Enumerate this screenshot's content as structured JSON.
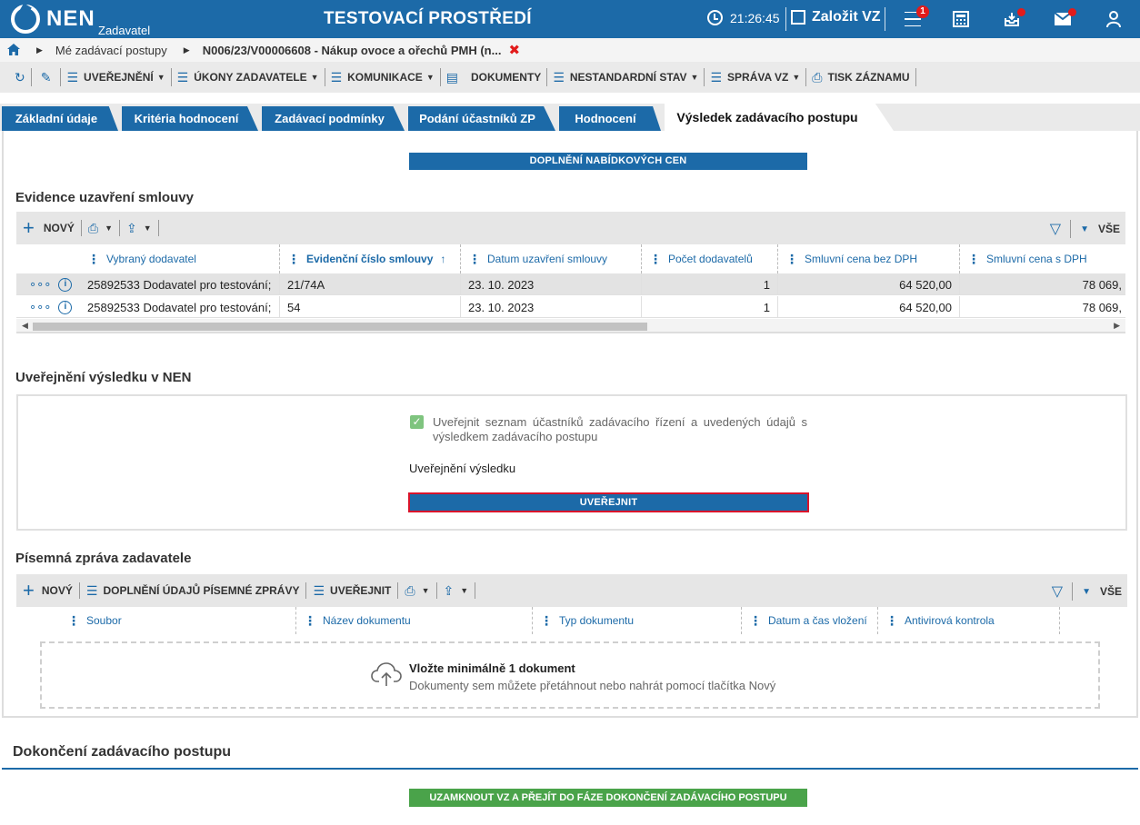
{
  "topbar": {
    "logo": "NEN",
    "logo_sub": "Zadavatel",
    "env_title": "TESTOVACÍ PROSTŘEDÍ",
    "time": "21:26:45",
    "zalozit": "Založit VZ",
    "menu_badge": "1"
  },
  "breadcrumb": {
    "item1": "Mé zadávací postupy",
    "item2": "N006/23/V00006608 - Nákup ovoce a ořechů PMH (n...",
    "close": "✖"
  },
  "toolbar": {
    "uverejneni": "UVEŘEJNĚNÍ",
    "ukony": "ÚKONY ZADAVATELE",
    "komunikace": "KOMUNIKACE",
    "dokumenty": "DOKUMENTY",
    "nestandardni": "NESTANDARDNÍ STAV",
    "sprava": "SPRÁVA VZ",
    "tisk": "TISK ZÁZNAMU"
  },
  "tabs": [
    {
      "label": "Základní údaje"
    },
    {
      "label": "Kritéria hodnocení"
    },
    {
      "label": "Zadávací podmínky"
    },
    {
      "label": "Podání účastníků ZP"
    },
    {
      "label": "Hodnocení"
    },
    {
      "label": "Výsledek zadávacího postupu"
    }
  ],
  "doplneni_btn": "DOPLNĚNÍ NABÍDKOVÝCH CEN",
  "evidence": {
    "title": "Evidence uzavření smlouvy",
    "new": "NOVÝ",
    "all": "VŠE",
    "columns": [
      "Vybraný dodavatel",
      "Evidenční číslo smlouvy",
      "Datum uzavření smlouvy",
      "Počet dodavatelů",
      "Smluvní cena bez DPH",
      "Smluvní cena s DPH"
    ],
    "rows": [
      {
        "dodavatel": "25892533 Dodavatel pro testování;",
        "cislo": "21/74A",
        "datum": "23. 10. 2023",
        "pocet": "1",
        "bez": "64 520,00",
        "s": "78 069,"
      },
      {
        "dodavatel": "25892533 Dodavatel pro testování;",
        "cislo": "54",
        "datum": "23. 10. 2023",
        "pocet": "1",
        "bez": "64 520,00",
        "s": "78 069,"
      }
    ]
  },
  "uverejneni": {
    "title": "Uveřejnění výsledku v NEN",
    "checkbox_label": "Uveřejnit seznam účastníků zadávacího řízení a uvedených údajů s výsledkem zadávacího postupu",
    "subtitle": "Uveřejnění výsledku",
    "button": "UVEŘEJNIT"
  },
  "pisemna": {
    "title": "Písemná zpráva zadavatele",
    "new": "NOVÝ",
    "doplneni": "DOPLNĚNÍ ÚDAJŮ PÍSEMNÉ ZPRÁVY",
    "uverejnit": "UVEŘEJNIT",
    "all": "VŠE",
    "columns": [
      "Soubor",
      "Název dokumentu",
      "Typ dokumentu",
      "Datum a čas vložení",
      "Antivirová kontrola"
    ],
    "drop_title": "Vložte minimálně 1 dokument",
    "drop_sub": "Dokumenty sem můžete přetáhnout nebo nahrát pomocí tlačítka Nový"
  },
  "dokonceni": {
    "title": "Dokončení zadávacího postupu",
    "button": "UZAMKNOUT VZ A PŘEJÍT DO FÁZE DOKONČENÍ ZADÁVACÍHO POSTUPU"
  }
}
